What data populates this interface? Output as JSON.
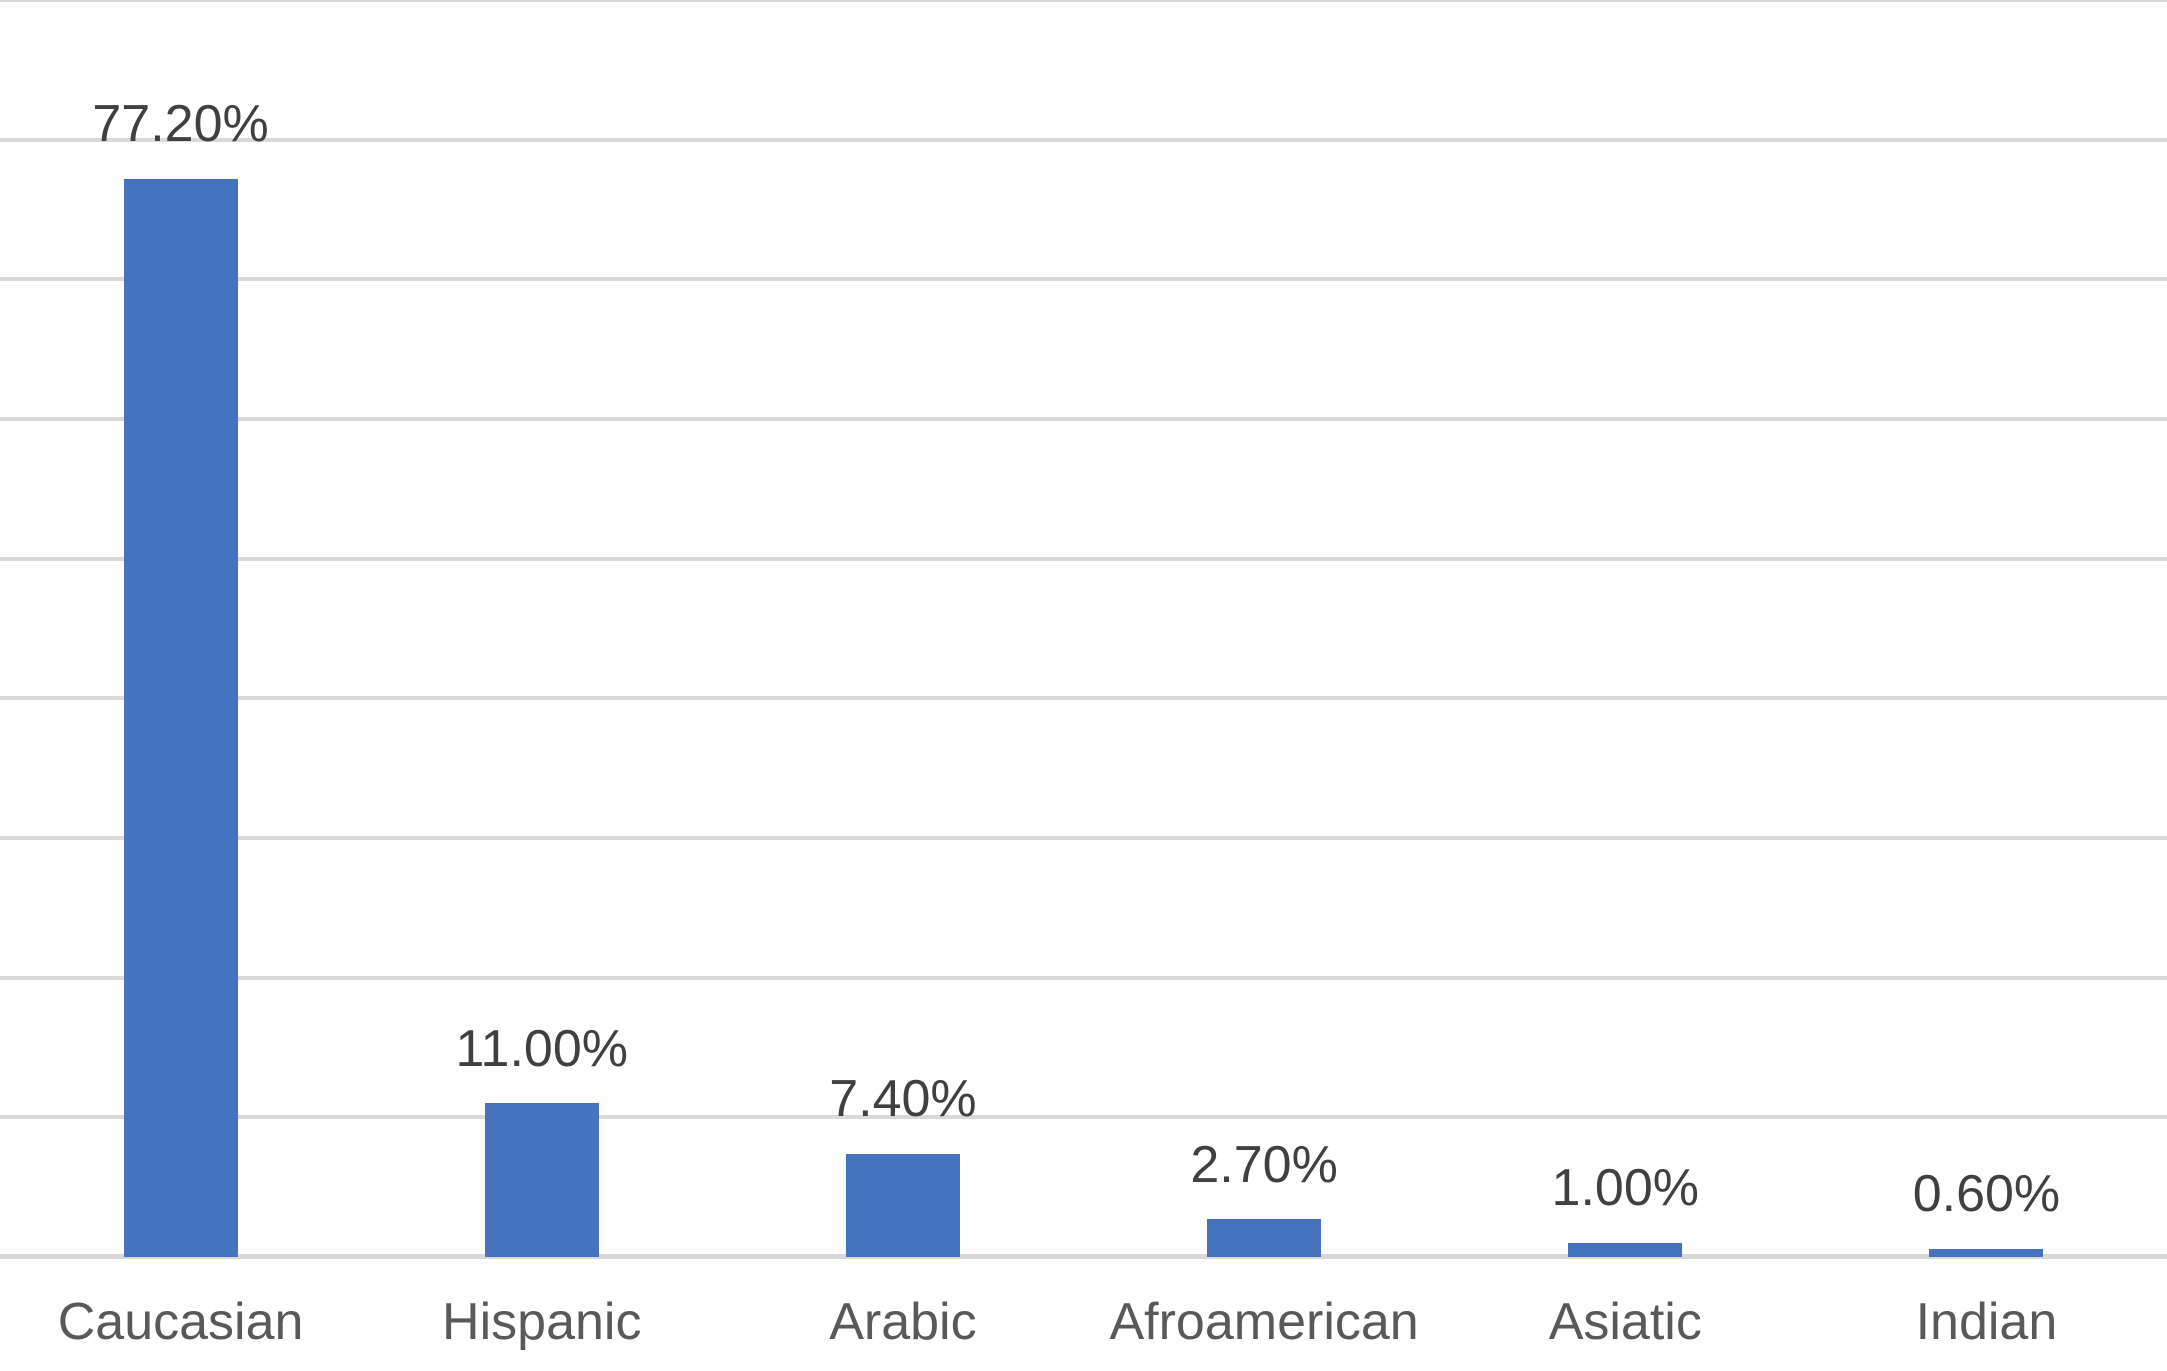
{
  "chart_data": {
    "type": "bar",
    "title": "",
    "xlabel": "",
    "ylabel": "",
    "categories": [
      "Caucasian",
      "Hispanic",
      "Arabic",
      "Afroamerican",
      "Asiatic",
      "Indian"
    ],
    "values": [
      77.2,
      11.0,
      7.4,
      2.7,
      1.0,
      0.6
    ],
    "data_labels": [
      "77.20%",
      "11.00%",
      "7.40%",
      "2.70%",
      "1.00%",
      "0.60%"
    ],
    "ylim": [
      0,
      90
    ],
    "ytick_step": 10,
    "yaxis_tick_labels_visible": false,
    "grid": "horizontal",
    "legend": "none",
    "bar_color": "#4673BD",
    "gridline_color": "#D9D9D9",
    "axis_line_color": "#D9D9D9",
    "data_label_color": "#404040",
    "category_label_color": "#595959"
  }
}
